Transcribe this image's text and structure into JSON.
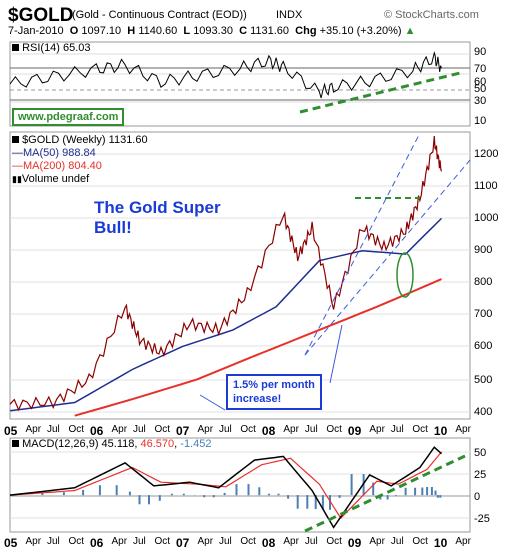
{
  "header": {
    "symbol": "$GOLD",
    "name": "(Gold - Continuous Contract (EOD))",
    "exchange": "INDX",
    "watermark": "© StockCharts.com",
    "date": "7-Jan-2010",
    "o_label": "O",
    "o_value": "1097.10",
    "h_label": "H",
    "h_value": "1140.60",
    "l_label": "L",
    "l_value": "1093.30",
    "c_label": "C",
    "c_value": "1131.60",
    "chg_label": "Chg",
    "chg_value": "+35.10 (+3.20%)",
    "chg_icon": "up-triangle-icon"
  },
  "rsi": {
    "label": "RSI(14) 65.03"
  },
  "website": "www.pdegraaf.com",
  "price_legend": {
    "title": "$GOLD (Weekly) 1131.60",
    "ma50": "MA(50) 988.84",
    "ma200": "MA(200) 804.40",
    "volume": "Volume undef"
  },
  "annotations": {
    "super_bull_line1": "The Gold Super",
    "super_bull_line2": "Bull!",
    "increase_line1": "1.5% per month",
    "increase_line2": "increase!"
  },
  "macd": {
    "label": "MACD(12,26,9)",
    "macd_value": "45.118",
    "signal_value": "46.570",
    "hist_value": "-1.452"
  },
  "colors": {
    "price": "#8b0000",
    "ma50": "#1f2f8f",
    "ma200": "#e8302a",
    "green_trend": "#2f8f2f",
    "channel": "#3b5bdb",
    "macd_hist": "#4a7fb5"
  },
  "chart_data": [
    {
      "type": "line",
      "name": "RSI(14)",
      "x": [
        "2005-01",
        "2005-07",
        "2006-01",
        "2006-05",
        "2006-10",
        "2007-03",
        "2007-09",
        "2008-01",
        "2008-03",
        "2008-08",
        "2008-10",
        "2009-03",
        "2009-09",
        "2009-12",
        "2010-01"
      ],
      "y": [
        50,
        57,
        64,
        68,
        52,
        58,
        65,
        72,
        66,
        42,
        47,
        53,
        63,
        75,
        65
      ],
      "y_ticks": [
        10,
        30,
        50,
        70,
        90
      ],
      "ylim": [
        10,
        90
      ],
      "reference_lines": [
        30,
        50,
        70
      ]
    },
    {
      "type": "line",
      "name": "$GOLD (Weekly)",
      "x_ticks": [
        "05",
        "Apr",
        "Jul",
        "Oct",
        "06",
        "Apr",
        "Jul",
        "Oct",
        "07",
        "Apr",
        "Jul",
        "Oct",
        "08",
        "Apr",
        "Jul",
        "Oct",
        "09",
        "Apr",
        "Jul",
        "Oct",
        "10",
        "Apr"
      ],
      "y_ticks": [
        400,
        500,
        600,
        700,
        800,
        900,
        1000,
        1100,
        1200
      ],
      "ylim": [
        380,
        1250
      ],
      "series": [
        {
          "name": "$GOLD",
          "x": [
            "2005-01",
            "2005-07",
            "2005-12",
            "2006-05",
            "2006-07",
            "2006-10",
            "2007-02",
            "2007-06",
            "2007-10",
            "2008-03",
            "2008-05",
            "2008-07",
            "2008-10",
            "2009-02",
            "2009-05",
            "2009-08",
            "2009-10",
            "2009-12",
            "2010-01"
          ],
          "values": [
            425,
            430,
            500,
            720,
            620,
            580,
            670,
            650,
            760,
            1000,
            870,
            960,
            720,
            960,
            900,
            950,
            1050,
            1220,
            1131
          ]
        },
        {
          "name": "MA(50)",
          "x": [
            "2005-01",
            "2005-10",
            "2006-06",
            "2007-01",
            "2007-08",
            "2008-02",
            "2008-08",
            "2009-02",
            "2009-08",
            "2010-01"
          ],
          "values": [
            405,
            430,
            530,
            600,
            650,
            720,
            860,
            890,
            880,
            988
          ]
        },
        {
          "name": "MA(200)",
          "x": [
            "2005-10",
            "2006-06",
            "2007-03",
            "2007-12",
            "2008-08",
            "2009-04",
            "2010-01"
          ],
          "values": [
            390,
            440,
            500,
            580,
            650,
            720,
            804
          ]
        }
      ]
    },
    {
      "type": "bar",
      "name": "MACD(12,26,9)",
      "y_ticks": [
        -25,
        0,
        25,
        50
      ],
      "ylim": [
        -40,
        62
      ],
      "series": [
        {
          "name": "MACD",
          "x": [
            "2005-01",
            "2005-10",
            "2006-05",
            "2006-09",
            "2007-02",
            "2007-06",
            "2007-11",
            "2008-03",
            "2008-07",
            "2008-10",
            "2009-03",
            "2009-06",
            "2009-10",
            "2009-12",
            "2010-01"
          ],
          "values": [
            0,
            8,
            35,
            10,
            14,
            8,
            38,
            42,
            5,
            -35,
            22,
            10,
            30,
            52,
            45
          ]
        },
        {
          "name": "Signal",
          "x": [
            "2005-01",
            "2005-10",
            "2006-06",
            "2006-10",
            "2007-03",
            "2007-07",
            "2007-12",
            "2008-04",
            "2008-08",
            "2008-11",
            "2009-04",
            "2009-07",
            "2009-11",
            "2010-01"
          ],
          "values": [
            0,
            5,
            30,
            14,
            12,
            9,
            33,
            40,
            12,
            -25,
            15,
            12,
            28,
            47
          ]
        }
      ]
    }
  ]
}
